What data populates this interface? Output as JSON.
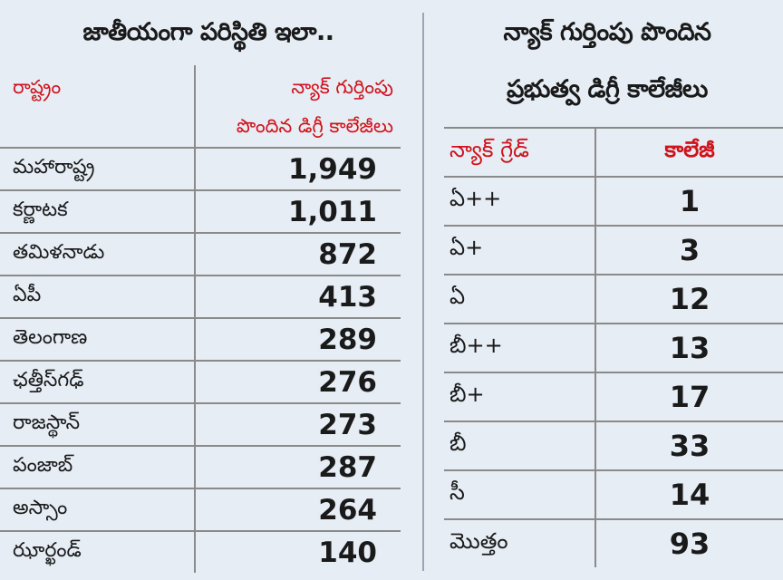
{
  "left": {
    "title": "జాతీయంగా పరిస్థితి ఇలా..",
    "header_state": "రాష్ట్రం",
    "header_value_line1": "న్యాక్ గుర్తింపు",
    "header_value_line2": "పొందిన డిగ్రీ కాలేజీలు",
    "rows": [
      {
        "state": "మహారాష్ట్ర",
        "value": "1,949"
      },
      {
        "state": "కర్ణాటక",
        "value": "1,011"
      },
      {
        "state": "తమిళనాడు",
        "value": "872"
      },
      {
        "state": "ఏపీ",
        "value": "413"
      },
      {
        "state": "తెలంగాణ",
        "value": "289"
      },
      {
        "state": "ఛత్తీస్‌గఢ్",
        "value": "276"
      },
      {
        "state": "రాజస్థాన్",
        "value": "273"
      },
      {
        "state": "పంజాబ్",
        "value": "287"
      },
      {
        "state": "అస్సాం",
        "value": "264"
      },
      {
        "state": "ఝార్ఖండ్",
        "value": "140"
      }
    ]
  },
  "right": {
    "title_line1": "న్యాక్ గుర్తింపు పొందిన",
    "title_line2": "ప్రభుత్వ డిగ్రీ కాలేజీలు",
    "header_grade": "న్యాక్ గ్రేడ్",
    "header_count": "కాలేజీ",
    "rows": [
      {
        "grade": "ఏ++",
        "count": "1"
      },
      {
        "grade": "ఏ+",
        "count": "3"
      },
      {
        "grade": "ఏ",
        "count": "12"
      },
      {
        "grade": "బీ++",
        "count": "13"
      },
      {
        "grade": "బీ+",
        "count": "17"
      },
      {
        "grade": "బీ",
        "count": "33"
      },
      {
        "grade": "సీ",
        "count": "14"
      },
      {
        "grade": "మొత్తం",
        "count": "93"
      }
    ]
  },
  "colors": {
    "background": "#e6edf5",
    "header_red": "#d0121b",
    "divider": "#8a8a8a"
  }
}
